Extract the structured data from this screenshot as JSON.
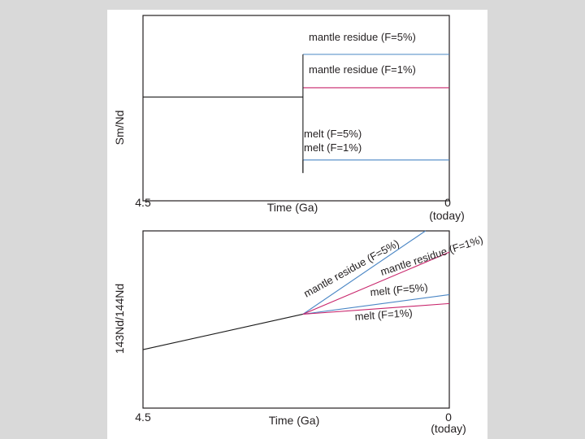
{
  "chart_data": [
    {
      "type": "line",
      "ylabel": "Sm/Nd",
      "xlabel": "Time (Ga)",
      "x_ticks": [
        "4.5",
        "0"
      ],
      "x_tick_note": "(today)",
      "xlim": [
        4.5,
        0
      ],
      "melting_time": 2.15,
      "series": [
        {
          "name": "mantle residue (F=5%)",
          "color": "#4a86c5",
          "x": [
            2.15,
            0
          ],
          "y": [
            0.79,
            0.79
          ]
        },
        {
          "name": "mantle residue (F=1%)",
          "color": "#c8246b",
          "x": [
            2.15,
            0
          ],
          "y": [
            0.61,
            0.61
          ]
        },
        {
          "name": "melt (F=5%)",
          "color": "#4a86c5",
          "x": [
            2.15,
            0
          ],
          "y": [
            0.22,
            0.22
          ]
        },
        {
          "name": "melt (F=1%)",
          "color": "#1a1a1a",
          "x": [
            2.15,
            2.15
          ],
          "y": [
            0.22,
            0.15
          ]
        },
        {
          "name": "",
          "color": "#1a1a1a",
          "x": [
            4.5,
            2.15
          ],
          "y": [
            0.56,
            0.56
          ]
        }
      ],
      "grid": false
    },
    {
      "type": "line",
      "ylabel": "143Nd/144Nd",
      "xlabel": "Time (Ga)",
      "x_ticks": [
        "4.5",
        "0"
      ],
      "x_tick_note": "(today)",
      "xlim": [
        4.5,
        0
      ],
      "series": [
        {
          "name": "",
          "color": "#1a1a1a",
          "x": [
            4.5,
            2.15
          ],
          "y": [
            0.33,
            0.53
          ]
        },
        {
          "name": "mantle residue (F=5%)",
          "color": "#4a86c5",
          "x": [
            2.15,
            0.35
          ],
          "y": [
            0.53,
            1.0
          ]
        },
        {
          "name": "mantle residue (F=1%)",
          "color": "#c8246b",
          "x": [
            2.15,
            0
          ],
          "y": [
            0.53,
            0.88
          ]
        },
        {
          "name": "melt (F=5%)",
          "color": "#4a86c5",
          "x": [
            2.15,
            0
          ],
          "y": [
            0.53,
            0.64
          ]
        },
        {
          "name": "melt (F=1%)",
          "color": "#c8246b",
          "x": [
            2.15,
            0
          ],
          "y": [
            0.53,
            0.59
          ]
        }
      ],
      "grid": false
    }
  ]
}
